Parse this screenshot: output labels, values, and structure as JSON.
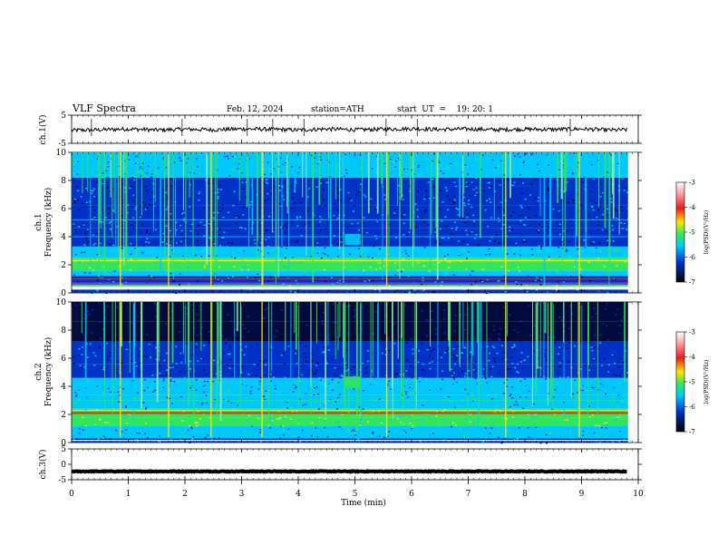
{
  "header": {
    "title": "VLF  Spectra",
    "date": "Feb. 12, 2024",
    "station": "station=ATH",
    "start_ut": "start  UT  =    19: 20: 1"
  },
  "chart_data": [
    {
      "type": "line",
      "panel": "ch1-waveform",
      "ylabel": "ch.1(V)",
      "ylim": [
        -5,
        5
      ],
      "yticks": [
        "5",
        "-5"
      ],
      "x": [
        0,
        0.5,
        1,
        1.5,
        2,
        2.5,
        3,
        3.5,
        4,
        4.5,
        5,
        5.5,
        6,
        6.5,
        7,
        7.5,
        8,
        8.5,
        9,
        9.5,
        9.8
      ],
      "values": [
        -0.4,
        -0.2,
        0.1,
        -0.3,
        0.0,
        -0.2,
        0.1,
        0.0,
        -0.3,
        0.1,
        -0.2,
        0.0,
        0.2,
        -0.1,
        0.1,
        -0.2,
        0.0,
        -0.1,
        0.1,
        -0.3,
        -0.2
      ]
    },
    {
      "type": "heatmap",
      "panel": "ch1-spectrogram",
      "ylabel": "ch.1\nFrequency (kHz)",
      "ylim": [
        0,
        10
      ],
      "yticks": [
        "0",
        "2",
        "4",
        "6",
        "8",
        "10"
      ],
      "colorbar": {
        "label": "log(PSD)(V²/Hz)",
        "range": [
          -7,
          -3
        ],
        "ticks": [
          "-3",
          "-4",
          "-5",
          "-6",
          "-7"
        ]
      }
    },
    {
      "type": "heatmap",
      "panel": "ch2-spectrogram",
      "ylabel": "ch.2\nFrequency (kHz)",
      "ylim": [
        0,
        10
      ],
      "yticks": [
        "0",
        "2",
        "4",
        "6",
        "8",
        "10"
      ],
      "colorbar": {
        "label": "log(PSD)(V²/Hz)",
        "range": [
          -7,
          -3
        ],
        "ticks": [
          "-3",
          "-4",
          "-5",
          "-6",
          "-7"
        ]
      }
    },
    {
      "type": "line",
      "panel": "ch3-waveform",
      "ylabel": "ch.3(V)",
      "ylim": [
        -5,
        5
      ],
      "yticks": [
        "5",
        "0",
        "-5"
      ],
      "x": [
        0,
        9.8
      ],
      "values": [
        -2.3,
        -2.3
      ]
    }
  ],
  "x_axis": {
    "label": "Time (min)",
    "xlim": [
      0,
      10
    ],
    "ticks": [
      "0",
      "1",
      "2",
      "3",
      "4",
      "5",
      "6",
      "7",
      "8",
      "9",
      "10"
    ]
  },
  "colors": {
    "spec_dark": "#000a3c",
    "spec_blue": "#0032c8",
    "spec_cyan": "#00c8ff",
    "spec_green": "#32e65a",
    "spec_yellow": "#ffe600",
    "spec_red": "#e61e1e"
  }
}
